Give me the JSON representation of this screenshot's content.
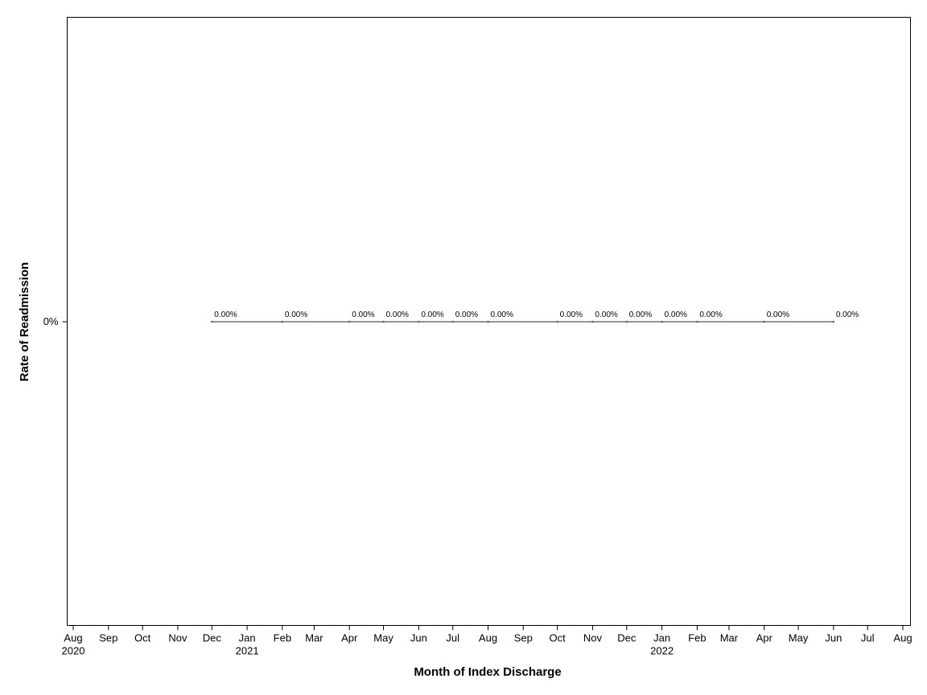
{
  "chart_data": {
    "type": "line",
    "title": "",
    "xlabel": "Month of Index Discharge",
    "ylabel": "Rate of Readmission",
    "x_axis": {
      "type": "date",
      "min": "2020-08",
      "max": "2022-08",
      "ticks": [
        {
          "month": "2020-08",
          "label": "Aug",
          "year_label": "2020"
        },
        {
          "month": "2020-09",
          "label": "Sep",
          "year_label": ""
        },
        {
          "month": "2020-10",
          "label": "Oct",
          "year_label": ""
        },
        {
          "month": "2020-11",
          "label": "Nov",
          "year_label": ""
        },
        {
          "month": "2020-12",
          "label": "Dec",
          "year_label": ""
        },
        {
          "month": "2021-01",
          "label": "Jan",
          "year_label": "2021"
        },
        {
          "month": "2021-02",
          "label": "Feb",
          "year_label": ""
        },
        {
          "month": "2021-03",
          "label": "Mar",
          "year_label": ""
        },
        {
          "month": "2021-04",
          "label": "Apr",
          "year_label": ""
        },
        {
          "month": "2021-05",
          "label": "May",
          "year_label": ""
        },
        {
          "month": "2021-06",
          "label": "Jun",
          "year_label": ""
        },
        {
          "month": "2021-07",
          "label": "Jul",
          "year_label": ""
        },
        {
          "month": "2021-08",
          "label": "Aug",
          "year_label": ""
        },
        {
          "month": "2021-09",
          "label": "Sep",
          "year_label": ""
        },
        {
          "month": "2021-10",
          "label": "Oct",
          "year_label": ""
        },
        {
          "month": "2021-11",
          "label": "Nov",
          "year_label": ""
        },
        {
          "month": "2021-12",
          "label": "Dec",
          "year_label": ""
        },
        {
          "month": "2022-01",
          "label": "Jan",
          "year_label": "2022"
        },
        {
          "month": "2022-02",
          "label": "Feb",
          "year_label": ""
        },
        {
          "month": "2022-03",
          "label": "Mar",
          "year_label": ""
        },
        {
          "month": "2022-04",
          "label": "Apr",
          "year_label": ""
        },
        {
          "month": "2022-05",
          "label": "May",
          "year_label": ""
        },
        {
          "month": "2022-06",
          "label": "Jun",
          "year_label": ""
        },
        {
          "month": "2022-07",
          "label": "Jul",
          "year_label": ""
        },
        {
          "month": "2022-08",
          "label": "Aug",
          "year_label": ""
        }
      ]
    },
    "y_axis": {
      "ticks": [
        {
          "value": 0,
          "label": "0%"
        }
      ]
    },
    "grid": false,
    "legend": "none",
    "series": [
      {
        "points": [
          {
            "x": "2020-12-01",
            "y": 0,
            "label": "0.00%"
          },
          {
            "x": "2021-02-01",
            "y": 0,
            "label": "0.00%"
          },
          {
            "x": "2021-04-01",
            "y": 0,
            "label": "0.00%"
          },
          {
            "x": "2021-05-01",
            "y": 0,
            "label": "0.00%"
          },
          {
            "x": "2021-06-01",
            "y": 0,
            "label": "0.00%"
          },
          {
            "x": "2021-07-01",
            "y": 0,
            "label": "0.00%"
          },
          {
            "x": "2021-08-01",
            "y": 0,
            "label": "0.00%"
          },
          {
            "x": "2021-10-01",
            "y": 0,
            "label": "0.00%"
          },
          {
            "x": "2021-11-01",
            "y": 0,
            "label": "0.00%"
          },
          {
            "x": "2021-12-01",
            "y": 0,
            "label": "0.00%"
          },
          {
            "x": "2022-01-01",
            "y": 0,
            "label": "0.00%"
          },
          {
            "x": "2022-02-01",
            "y": 0,
            "label": "0.00%"
          },
          {
            "x": "2022-04-01",
            "y": 0,
            "label": "0.00%"
          },
          {
            "x": "2022-06-01",
            "y": 0,
            "label": "0.00%"
          }
        ]
      }
    ]
  }
}
